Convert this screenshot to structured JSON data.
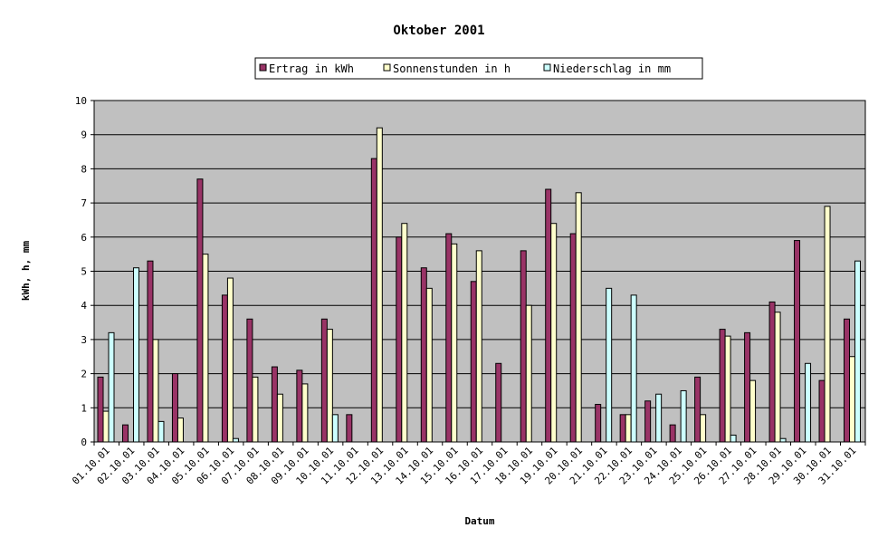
{
  "chart_data": {
    "type": "bar",
    "title": "Oktober 2001",
    "xlabel": "Datum",
    "ylabel": "kWh, h, mm",
    "ylim": [
      0,
      10
    ],
    "yticks": [
      0,
      1,
      2,
      3,
      4,
      5,
      6,
      7,
      8,
      9,
      10
    ],
    "grid": true,
    "legend_position": "top-center",
    "categories": [
      "01.10.01",
      "02.10.01",
      "03.10.01",
      "04.10.01",
      "05.10.01",
      "06.10.01",
      "07.10.01",
      "08.10.01",
      "09.10.01",
      "10.10.01",
      "11.10.01",
      "12.10.01",
      "13.10.01",
      "14.10.01",
      "15.10.01",
      "16.10.01",
      "17.10.01",
      "18.10.01",
      "19.10.01",
      "20.10.01",
      "21.10.01",
      "22.10.01",
      "23.10.01",
      "24.10.01",
      "25.10.01",
      "26.10.01",
      "27.10.01",
      "28.10.01",
      "29.10.01",
      "30.10.01",
      "31.10.01"
    ],
    "series": [
      {
        "name": "Ertrag in kWh",
        "color": "#993366",
        "values": [
          1.9,
          0.5,
          5.3,
          2.0,
          7.7,
          4.3,
          3.6,
          2.2,
          2.1,
          3.6,
          0.8,
          8.3,
          6.0,
          5.1,
          6.1,
          4.7,
          2.3,
          5.6,
          7.4,
          6.1,
          1.1,
          0.8,
          1.2,
          0.5,
          1.9,
          3.3,
          3.2,
          4.1,
          5.9,
          1.8,
          3.6
        ]
      },
      {
        "name": "Sonnenstunden in h",
        "color": "#ffffcc",
        "values": [
          0.9,
          0,
          3.0,
          0.7,
          5.5,
          4.8,
          1.9,
          1.4,
          1.7,
          3.3,
          0,
          9.2,
          6.4,
          4.5,
          5.8,
          5.6,
          0,
          4.0,
          6.4,
          7.3,
          0,
          0.8,
          0,
          0,
          0.8,
          3.1,
          1.8,
          3.8,
          0,
          6.9,
          2.5
        ]
      },
      {
        "name": "Niederschlag in mm",
        "color": "#ccffff",
        "values": [
          3.2,
          5.1,
          0.6,
          0,
          0,
          0.1,
          0,
          0,
          0,
          0.8,
          0,
          0,
          0,
          0,
          0,
          0,
          0,
          0,
          0,
          0,
          4.5,
          4.3,
          1.4,
          1.5,
          0,
          0.2,
          0,
          0.1,
          2.3,
          0,
          5.3
        ]
      }
    ]
  },
  "colors": {
    "plot_background": "#c0c0c0",
    "bar_outline": "#000000"
  }
}
